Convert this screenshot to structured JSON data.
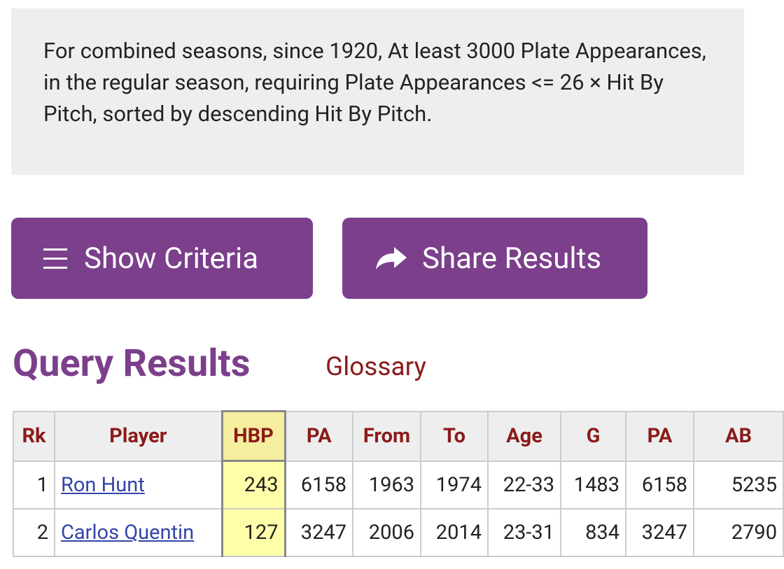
{
  "header": {
    "description": "For combined seasons, since 1920, At least 3000 Plate Appearances, in the regular season, requiring Plate Appearances <= 26 × Hit By Pitch, sorted by descending Hit By Pitch."
  },
  "buttons": [
    "Show Criteria",
    "Share Results"
  ],
  "heading": "Query Results",
  "glossary": "Glossary",
  "table": {
    "columns": [
      "Rk",
      "Player",
      "HBP",
      "PA",
      "From",
      "To",
      "Age",
      "G",
      "PA",
      "AB"
    ],
    "rows": [
      [
        "1",
        "Ron Hunt",
        "243",
        "6158",
        "1963",
        "1974",
        "22-33",
        "1483",
        "6158",
        "5235"
      ],
      [
        "2",
        "Carlos Quentin",
        "127",
        "3247",
        "2006",
        "2014",
        "23-31",
        "834",
        "3247",
        "2790"
      ]
    ]
  }
}
